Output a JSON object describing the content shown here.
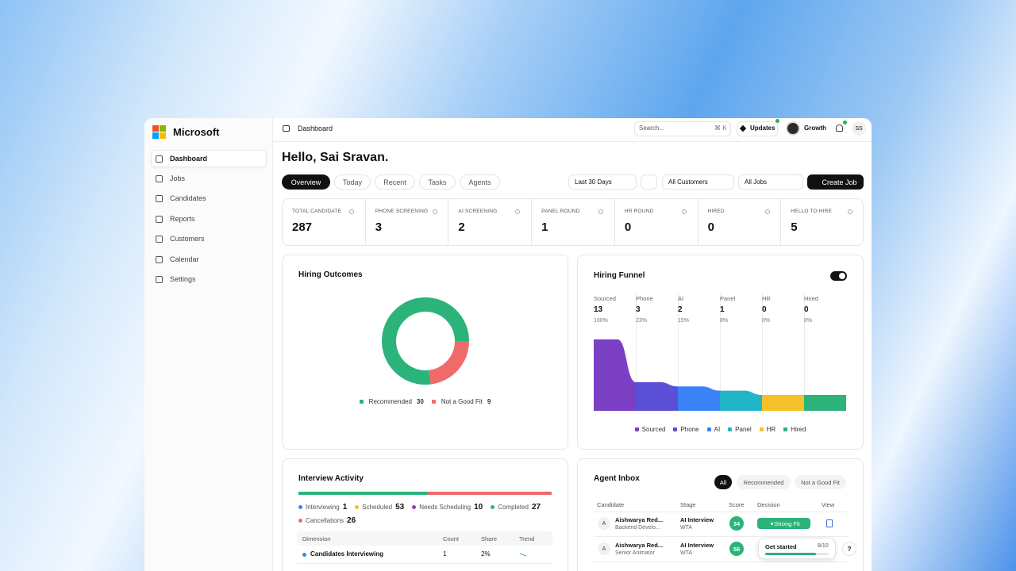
{
  "brand": "Microsoft",
  "nav": [
    "Dashboard",
    "Jobs",
    "Candidates",
    "Reports",
    "Customers",
    "Calendar",
    "Settings"
  ],
  "topbar": {
    "breadcrumb": "Dashboard",
    "search": "Search...",
    "shortcut": "⌘ K",
    "updates": "Updates",
    "workspace": "Growth",
    "user": "SS"
  },
  "greeting": "Hello, Sai Sravan.",
  "tabs": [
    "Overview",
    "Today",
    "Recent",
    "Tasks",
    "Agents"
  ],
  "filters": [
    "Last 30 Days",
    "All Customers",
    "All Jobs"
  ],
  "create_button": "Create Job",
  "stats": [
    {
      "label": "TOTAL CANDIDATE",
      "value": 287
    },
    {
      "label": "PHONE SCREENING",
      "value": 3
    },
    {
      "label": "AI SCREENING",
      "value": 2
    },
    {
      "label": "PANEL ROUND",
      "value": 1
    },
    {
      "label": "HR ROUND",
      "value": 0
    },
    {
      "label": "HIRED",
      "value": 0
    },
    {
      "label": "HELLO TO HIRE",
      "value": 5
    }
  ],
  "chart_data": [
    {
      "type": "pie",
      "donut": true,
      "title": "Hiring Outcomes",
      "categories": [
        "Recommended",
        "Not a Good Fit"
      ],
      "values": [
        30,
        9
      ],
      "colors": [
        "#2bb37a",
        "#ef6b6b"
      ]
    },
    {
      "type": "funnel",
      "title": "Hiring Funnel",
      "categories": [
        "Sourced",
        "Phone",
        "AI",
        "Panel",
        "HR",
        "Hired"
      ],
      "values": [
        13,
        3,
        2,
        1,
        0,
        0
      ],
      "shares": [
        "100%",
        "23%",
        "15%",
        "8%",
        "0%",
        "0%"
      ],
      "colors": [
        "#7b3fc4",
        "#5a4fd6",
        "#3b82f6",
        "#22b5c9",
        "#f5c02a",
        "#2bb37a"
      ]
    }
  ],
  "interview_activity": {
    "title": "Interview Activity",
    "metrics": [
      {
        "label": "Interviewing",
        "value": 1,
        "color": "#3b82f6"
      },
      {
        "label": "Scheduled",
        "value": 53,
        "color": "#f5c02a"
      },
      {
        "label": "Needs Scheduling",
        "value": 10,
        "color": "#8e3fc4"
      },
      {
        "label": "Completed",
        "value": 27,
        "color": "#2bb37a"
      },
      {
        "label": "Cancellations",
        "value": 26,
        "color": "#ef6b6b"
      }
    ],
    "columns": [
      "Dimension",
      "Count",
      "Share",
      "Trend"
    ],
    "rows": [
      [
        "Candidates Interviewing",
        1,
        "2%"
      ]
    ]
  },
  "agent_inbox": {
    "title": "Agent Inbox",
    "filters": [
      "All",
      "Recommended",
      "Not a Good Fit"
    ],
    "columns": [
      "Candidate",
      "Stage",
      "Score",
      "Decision",
      "View"
    ],
    "rows": [
      {
        "initial": "A",
        "name": "Aishwarya Red...",
        "role": "Backend Develo...",
        "stage": "AI Interview",
        "stage_sub": "WTA",
        "score": 34,
        "decision": "Strong Fit"
      },
      {
        "initial": "A",
        "name": "Aishwarya Red...",
        "role": "Senior Animator",
        "stage": "AI Interview",
        "stage_sub": "WTA",
        "score": 56
      }
    ]
  },
  "onboarding": {
    "label": "Get started",
    "progress": "8/10"
  },
  "help": "?"
}
